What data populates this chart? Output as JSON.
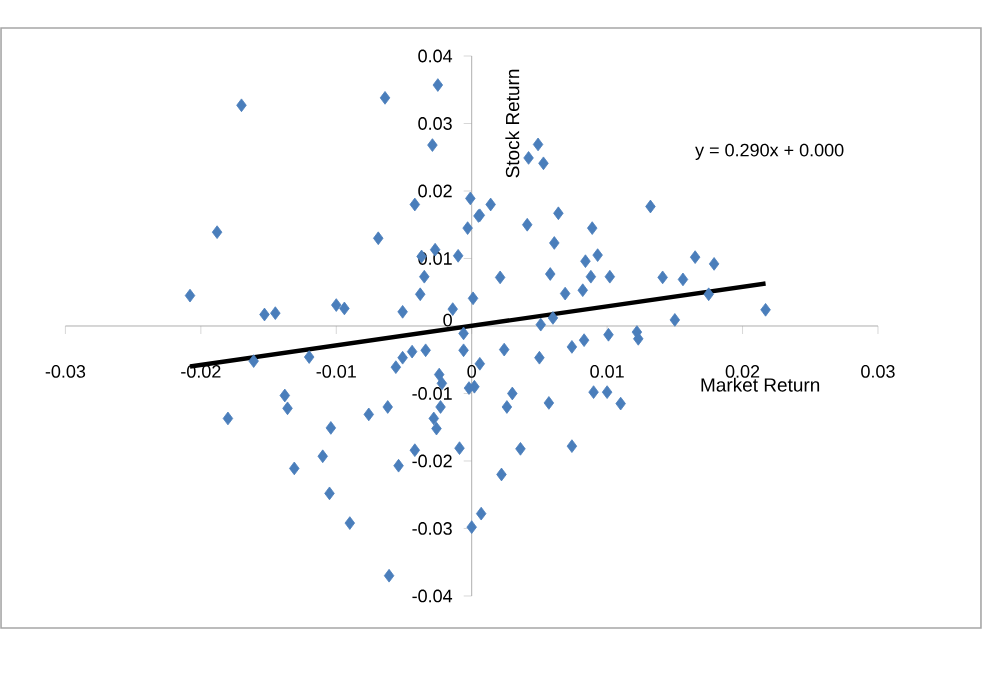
{
  "chart_data": {
    "type": "scatter",
    "xlabel": "Market Return",
    "ylabel": "Stock Return",
    "annotations": [
      "y = 0.290x + 0.000"
    ],
    "xlim": [
      -0.03,
      0.03
    ],
    "ylim": [
      -0.04,
      0.04
    ],
    "xticks": [
      -0.03,
      -0.02,
      -0.01,
      0,
      0.01,
      0.02,
      0.03
    ],
    "yticks": [
      -0.04,
      -0.03,
      -0.02,
      -0.01,
      0,
      0.01,
      0.02,
      0.03,
      0.04
    ],
    "grid": false,
    "marker": "diamond",
    "series": [
      {
        "type": "scatter",
        "color": "#4a7ebb",
        "x": [
          -0.017,
          -0.0064,
          -0.0025,
          -0.0029,
          -0.0188,
          -0.0208,
          -0.0153,
          -0.0145,
          -0.01,
          -0.0094,
          -0.0069,
          -0.0042,
          -0.0037,
          -0.0027,
          -0.0035,
          -0.0038,
          -0.0051,
          -0.0014,
          -0.001,
          -0.0001,
          -0.0003,
          0.0005,
          0.0001,
          0.0006,
          0.0014,
          0.0021,
          0.0042,
          0.0049,
          0.0053,
          0.0041,
          0.0064,
          0.0061,
          0.0058,
          0.0069,
          0.0051,
          0.006,
          0.0089,
          0.0084,
          0.0093,
          0.0088,
          0.0082,
          0.0102,
          0.0132,
          0.0141,
          0.0156,
          0.0165,
          0.0179,
          0.0175,
          0.015,
          0.0217,
          -0.0161,
          -0.012,
          -0.0138,
          -0.0136,
          -0.018,
          -0.0104,
          -0.0076,
          -0.0062,
          -0.0131,
          -0.011,
          -0.0105,
          -0.009,
          -0.0061,
          -0.0054,
          -0.0042,
          -0.0009,
          0.0,
          -0.0056,
          -0.0051,
          -0.0044,
          -0.0034,
          -0.0024,
          -0.0022,
          -0.0028,
          -0.0026,
          -0.0023,
          -0.0006,
          -0.0006,
          -0.0002,
          0.0002,
          0.0007,
          0.0006,
          0.0024,
          0.005,
          0.0074,
          0.0083,
          0.0101,
          0.0122,
          0.0123,
          0.003,
          0.0026,
          0.0057,
          0.009,
          0.01,
          0.011,
          0.0036,
          0.0074,
          0.0022
        ],
        "values": [
          0.0327,
          0.0338,
          0.0357,
          0.0268,
          0.0139,
          0.0045,
          0.0017,
          0.0019,
          0.0031,
          0.0026,
          0.013,
          0.018,
          0.0103,
          0.0113,
          0.0073,
          0.0047,
          0.0021,
          0.0025,
          0.0104,
          0.0189,
          0.0145,
          0.0163,
          0.0041,
          0.0164,
          0.018,
          0.0072,
          0.0249,
          0.0269,
          0.0241,
          0.015,
          0.0167,
          0.0123,
          0.0077,
          0.0048,
          0.0002,
          0.0012,
          0.0145,
          0.0096,
          0.0105,
          0.0073,
          0.0053,
          0.0073,
          0.0177,
          0.0072,
          0.0069,
          0.0102,
          0.0092,
          0.0047,
          0.0009,
          0.0024,
          -0.0052,
          -0.0046,
          -0.0103,
          -0.0122,
          -0.0137,
          -0.0151,
          -0.0131,
          -0.012,
          -0.0211,
          -0.0193,
          -0.0248,
          -0.0292,
          -0.037,
          -0.0207,
          -0.0184,
          -0.0181,
          -0.0298,
          -0.0061,
          -0.0047,
          -0.0038,
          -0.0036,
          -0.0072,
          -0.0085,
          -0.0137,
          -0.0152,
          -0.012,
          -0.0011,
          -0.0036,
          -0.0092,
          -0.009,
          -0.0278,
          -0.0056,
          -0.0035,
          -0.0047,
          -0.0031,
          -0.0021,
          -0.0013,
          -0.0009,
          -0.0019,
          -0.01,
          -0.012,
          -0.0114,
          -0.0098,
          -0.0098,
          -0.0115,
          -0.0182,
          -0.0178,
          -0.022
        ]
      },
      {
        "type": "line",
        "color": "#000000",
        "marker": "none",
        "x": [
          -0.0208,
          0.0217
        ],
        "values": [
          -0.006,
          0.0063
        ]
      }
    ]
  }
}
